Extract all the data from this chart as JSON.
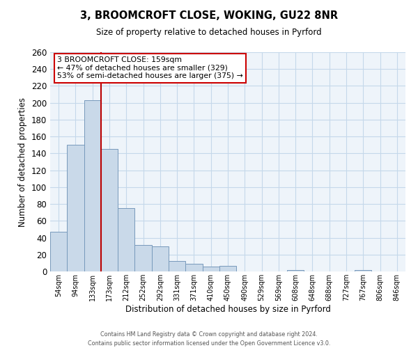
{
  "title": "3, BROOMCROFT CLOSE, WOKING, GU22 8NR",
  "subtitle": "Size of property relative to detached houses in Pyrford",
  "xlabel": "Distribution of detached houses by size in Pyrford",
  "ylabel": "Number of detached properties",
  "bin_labels": [
    "54sqm",
    "94sqm",
    "133sqm",
    "173sqm",
    "212sqm",
    "252sqm",
    "292sqm",
    "331sqm",
    "371sqm",
    "410sqm",
    "450sqm",
    "490sqm",
    "529sqm",
    "569sqm",
    "608sqm",
    "648sqm",
    "688sqm",
    "727sqm",
    "767sqm",
    "806sqm",
    "846sqm"
  ],
  "bar_values": [
    47,
    150,
    203,
    145,
    75,
    31,
    30,
    12,
    9,
    6,
    7,
    0,
    0,
    0,
    2,
    0,
    0,
    0,
    2,
    0,
    0
  ],
  "bar_color": "#c9d9e9",
  "bar_edge_color": "#7799bb",
  "vline_x": 2.5,
  "vline_color": "#bb0000",
  "ylim": [
    0,
    260
  ],
  "yticks": [
    0,
    20,
    40,
    60,
    80,
    100,
    120,
    140,
    160,
    180,
    200,
    220,
    240,
    260
  ],
  "annotation_title": "3 BROOMCROFT CLOSE: 159sqm",
  "annotation_line1": "← 47% of detached houses are smaller (329)",
  "annotation_line2": "53% of semi-detached houses are larger (375) →",
  "annotation_box_color": "#ffffff",
  "annotation_border_color": "#cc0000",
  "footnote1": "Contains HM Land Registry data © Crown copyright and database right 2024.",
  "footnote2": "Contains public sector information licensed under the Open Government Licence v3.0.",
  "background_color": "#ffffff",
  "plot_bg_color": "#eef4fa",
  "grid_color": "#c5d8ea"
}
